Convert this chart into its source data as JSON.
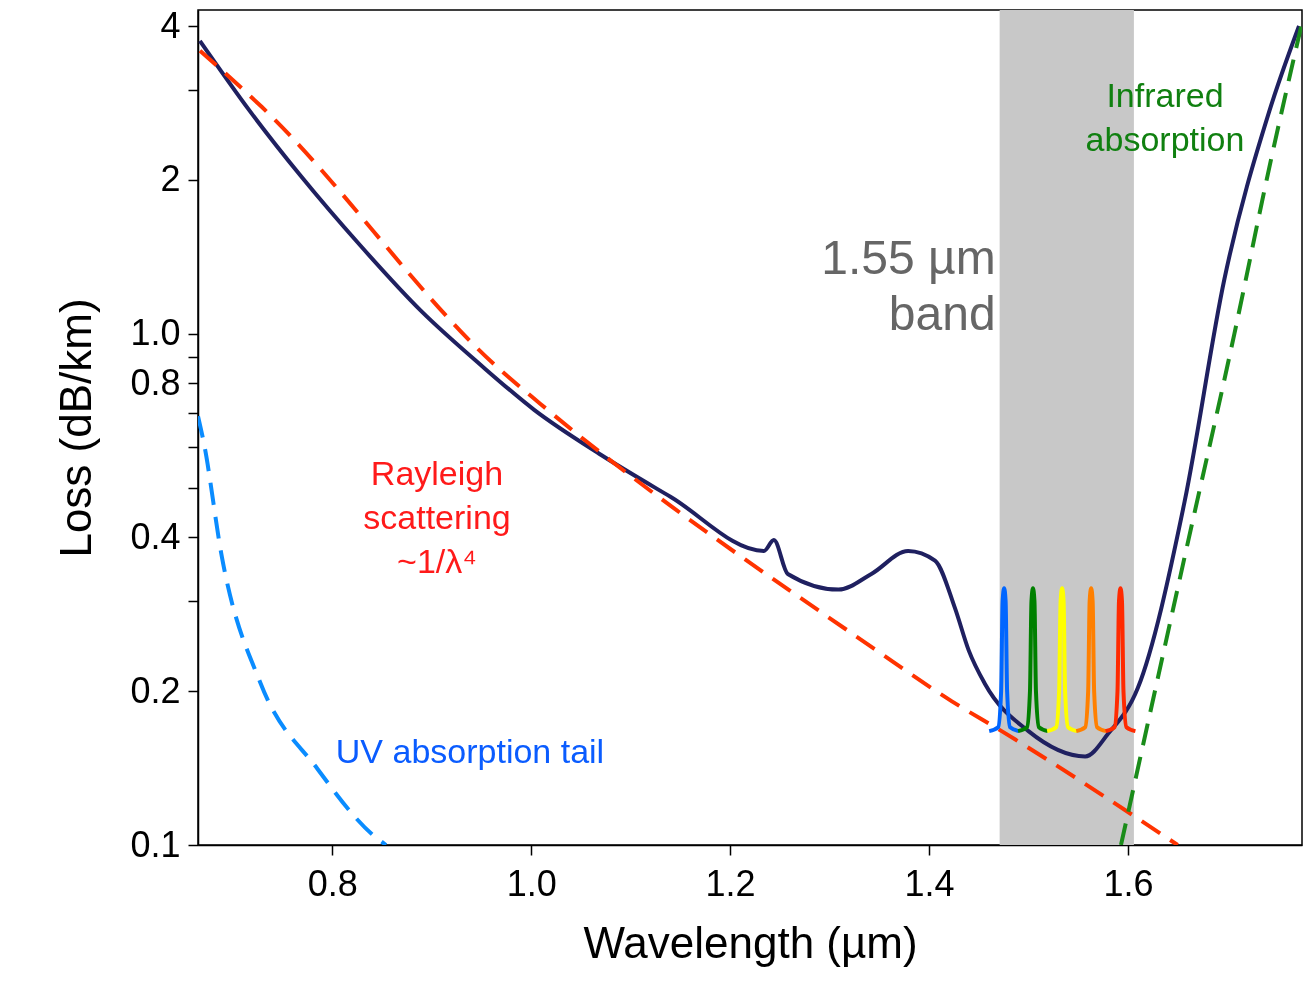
{
  "chart_data": {
    "type": "line",
    "xlabel": "Wavelength (µm)",
    "ylabel": "Loss (dB/km)",
    "xlim": [
      0.665,
      1.775
    ],
    "ylim": [
      0.1,
      4.3
    ],
    "log": "y",
    "grid": false,
    "xticks": [
      0.8,
      {
        "value": 1.0,
        "label": "1.0"
      },
      1.2,
      1.4,
      1.6
    ],
    "yticks": [
      0.1,
      0.2,
      {
        "value": 0.3,
        "label": null
      },
      0.4,
      {
        "value": 0.5,
        "label": null
      },
      {
        "value": 0.6,
        "label": null
      },
      {
        "value": 0.7,
        "label": null
      },
      0.8,
      {
        "value": 0.9,
        "label": null
      },
      {
        "value": 1.0,
        "label": "1.0"
      },
      2,
      {
        "value": 3,
        "label": null
      },
      4
    ],
    "bands": [
      {
        "axis": "x",
        "from": 1.471,
        "to": 1.606,
        "label": "1.55 µm\nband",
        "color": "#c8c8c8"
      }
    ],
    "series": [
      {
        "color": "#1f2060",
        "line_style": "solid",
        "x": [
          0.667,
          0.717,
          0.768,
          0.828,
          0.889,
          0.949,
          1.003,
          1.07,
          1.14,
          1.234,
          1.244,
          1.258,
          1.309,
          1.342,
          1.379,
          1.406,
          1.426,
          1.44,
          1.456,
          1.5,
          1.557,
          1.58,
          1.61,
          1.657,
          1.697,
          1.742,
          1.772
        ],
        "values": [
          3.74,
          2.73,
          2.04,
          1.49,
          1.11,
          0.87,
          0.71,
          0.58,
          0.48,
          0.376,
          0.395,
          0.339,
          0.316,
          0.339,
          0.376,
          0.36,
          0.291,
          0.24,
          0.207,
          0.167,
          0.149,
          0.165,
          0.203,
          0.47,
          1.28,
          2.72,
          4.0
        ]
      },
      {
        "color": "#ff3300",
        "line_style": "dashed",
        "x": [
          0.667,
          0.729,
          0.969,
          1.009,
          1.345,
          1.423,
          1.473,
          1.65
        ],
        "values": [
          3.58,
          2.78,
          0.85,
          0.73,
          0.242,
          0.191,
          0.167,
          0.1
        ]
      },
      {
        "color": "#0a8cff",
        "line_style": "dashed",
        "x": [
          0.665,
          0.671,
          0.689,
          0.728,
          0.785,
          0.84,
          0.854
        ],
        "values": [
          0.69,
          0.61,
          0.366,
          0.207,
          0.141,
          0.105,
          0.1
        ]
      },
      {
        "color": "#1a8c1a",
        "line_style": "dashed",
        "x": [
          1.593,
          1.657,
          1.707,
          1.742,
          1.775
        ],
        "values": [
          0.1,
          0.366,
          1.0,
          2.11,
          4.06
        ]
      },
      {
        "color": "#0066ff",
        "line_style": "solid",
        "x": [
          1.4605,
          1.4695,
          1.4725,
          1.474,
          1.4755,
          1.477,
          1.4785,
          1.4815,
          1.4905
        ],
        "values": [
          0.167,
          0.17,
          0.2,
          0.3,
          0.318,
          0.3,
          0.2,
          0.17,
          0.167
        ]
      },
      {
        "color": "#008000",
        "line_style": "solid",
        "x": [
          1.4895,
          1.4985,
          1.5015,
          1.503,
          1.5045,
          1.506,
          1.5075,
          1.5105,
          1.5195
        ],
        "values": [
          0.167,
          0.17,
          0.2,
          0.3,
          0.318,
          0.3,
          0.2,
          0.17,
          0.167
        ]
      },
      {
        "color": "#ffff00",
        "line_style": "solid",
        "x": [
          1.5188,
          1.5278,
          1.5308,
          1.5323,
          1.5338,
          1.5353,
          1.5368,
          1.5398,
          1.5488
        ],
        "values": [
          0.167,
          0.17,
          0.2,
          0.3,
          0.318,
          0.3,
          0.2,
          0.17,
          0.167
        ]
      },
      {
        "color": "#ff8000",
        "line_style": "solid",
        "x": [
          1.548,
          1.557,
          1.56,
          1.5615,
          1.563,
          1.5645,
          1.566,
          1.569,
          1.578
        ],
        "values": [
          0.167,
          0.17,
          0.2,
          0.3,
          0.318,
          0.3,
          0.2,
          0.17,
          0.167
        ]
      },
      {
        "color": "#ff2a00",
        "line_style": "solid",
        "x": [
          1.5775,
          1.5865,
          1.5895,
          1.591,
          1.5925,
          1.594,
          1.5955,
          1.5985,
          1.6075
        ],
        "values": [
          0.167,
          0.17,
          0.2,
          0.3,
          0.318,
          0.3,
          0.2,
          0.17,
          0.167
        ]
      }
    ],
    "annotations": [
      "Rayleigh\nscattering\n~1/λ⁴",
      "UV absorption tail",
      "Infrared\nabsorption"
    ]
  }
}
